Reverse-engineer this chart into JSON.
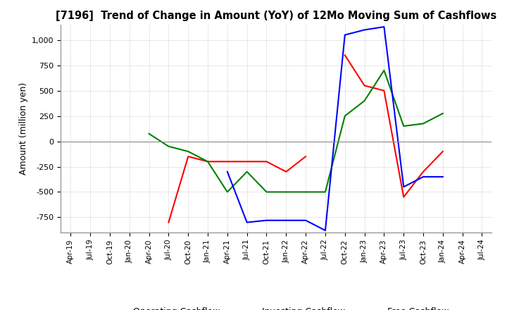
{
  "title": "[7196]  Trend of Change in Amount (YoY) of 12Mo Moving Sum of Cashflows",
  "ylabel": "Amount (million yen)",
  "x_labels": [
    "Apr-19",
    "Jul-19",
    "Oct-19",
    "Jan-20",
    "Apr-20",
    "Jul-20",
    "Oct-20",
    "Jan-21",
    "Apr-21",
    "Jul-21",
    "Oct-21",
    "Jan-22",
    "Apr-22",
    "Jul-22",
    "Oct-22",
    "Jan-23",
    "Apr-23",
    "Jul-23",
    "Oct-23",
    "Jan-24",
    "Apr-24",
    "Jul-24"
  ],
  "operating": [
    null,
    null,
    null,
    null,
    null,
    -800,
    -150,
    -200,
    -200,
    -200,
    -200,
    -300,
    -150,
    null,
    850,
    550,
    500,
    -550,
    -300,
    -100,
    null,
    null
  ],
  "investing": [
    null,
    null,
    null,
    null,
    75,
    -50,
    -100,
    -200,
    -500,
    -300,
    -500,
    -500,
    -500,
    -500,
    250,
    400,
    700,
    150,
    175,
    275,
    null,
    null
  ],
  "free": [
    null,
    null,
    null,
    null,
    null,
    null,
    null,
    null,
    -300,
    -800,
    -780,
    -780,
    -780,
    -880,
    1050,
    1100,
    1130,
    -450,
    -350,
    -350,
    null,
    null
  ],
  "ylim": [
    -900,
    1150
  ],
  "yticks": [
    -750,
    -500,
    -250,
    0,
    250,
    500,
    750,
    1000
  ],
  "operating_color": "#ff0000",
  "investing_color": "#008000",
  "free_color": "#0000ff",
  "background_color": "#ffffff",
  "grid_color": "#aaaaaa"
}
